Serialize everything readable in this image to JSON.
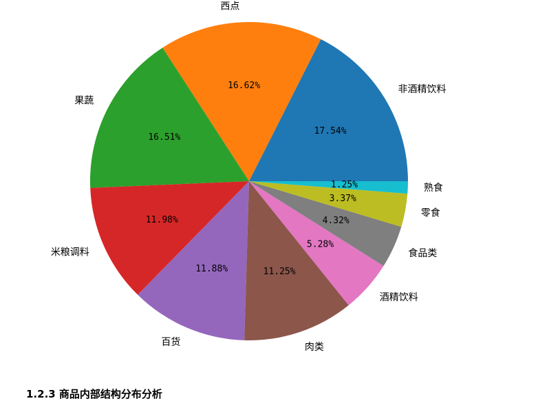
{
  "chart_data": {
    "type": "pie",
    "categories": [
      "非酒精饮料",
      "西点",
      "果蔬",
      "米粮调料",
      "百货",
      "肉类",
      "酒精饮料",
      "食品类",
      "零食",
      "熟食"
    ],
    "values": [
      17.54,
      16.62,
      16.51,
      11.98,
      11.88,
      11.25,
      5.28,
      4.32,
      3.37,
      1.25
    ],
    "value_labels": [
      "17.54%",
      "16.62%",
      "16.51%",
      "11.98%",
      "11.88%",
      "11.25%",
      "5.28%",
      "4.32%",
      "3.37%",
      "1.25%"
    ],
    "colors": [
      "#1f77b4",
      "#ff7f0e",
      "#2ca02c",
      "#d62728",
      "#9467bd",
      "#8c564b",
      "#e377c2",
      "#7f7f7f",
      "#bcbd22",
      "#17becf"
    ],
    "start_angle": 0,
    "direction": "counterclockwise",
    "legend": "none"
  },
  "heading": "1.2.3 商品内部结构分布分析"
}
